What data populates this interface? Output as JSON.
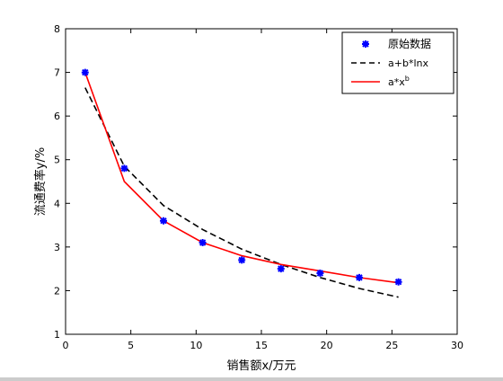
{
  "colors": {
    "background": "#ffffff",
    "axes": "#000000",
    "data_marker": "#0000ff",
    "fit_log": "#000000",
    "fit_power": "#ff0000"
  },
  "chart_data": {
    "type": "line",
    "title": "",
    "xlabel": "销售额x/万元",
    "ylabel": "流通费率y/%",
    "xlim": [
      0,
      30
    ],
    "ylim": [
      1,
      8
    ],
    "xticks": [
      0,
      5,
      10,
      15,
      20,
      25,
      30
    ],
    "yticks": [
      1,
      2,
      3,
      4,
      5,
      6,
      7,
      8
    ],
    "grid": false,
    "legend_position": "top-right",
    "series": [
      {
        "name": "原始数据",
        "style": "markers",
        "marker": "star",
        "color": "#0000ff",
        "x": [
          1.5,
          4.5,
          7.5,
          10.5,
          13.5,
          16.5,
          19.5,
          22.5,
          25.5
        ],
        "y": [
          7.0,
          4.8,
          3.6,
          3.1,
          2.7,
          2.5,
          2.4,
          2.3,
          2.2
        ]
      },
      {
        "name": "a+b*lnx",
        "name_parts": [
          "a+b*lnx"
        ],
        "style": "dashed-line",
        "color": "#000000",
        "x": [
          1.5,
          4.5,
          7.5,
          10.5,
          13.5,
          16.5,
          19.5,
          22.5,
          25.5
        ],
        "y": [
          6.65,
          4.85,
          3.95,
          3.4,
          2.95,
          2.6,
          2.3,
          2.05,
          1.85
        ]
      },
      {
        "name": "a*x^b",
        "name_parts": [
          "a*x",
          "b"
        ],
        "style": "solid-line",
        "color": "#ff0000",
        "x": [
          1.5,
          4.5,
          7.5,
          10.5,
          13.5,
          16.5,
          19.5,
          22.5,
          25.5
        ],
        "y": [
          7.0,
          4.5,
          3.6,
          3.1,
          2.8,
          2.6,
          2.45,
          2.3,
          2.18
        ]
      }
    ]
  }
}
